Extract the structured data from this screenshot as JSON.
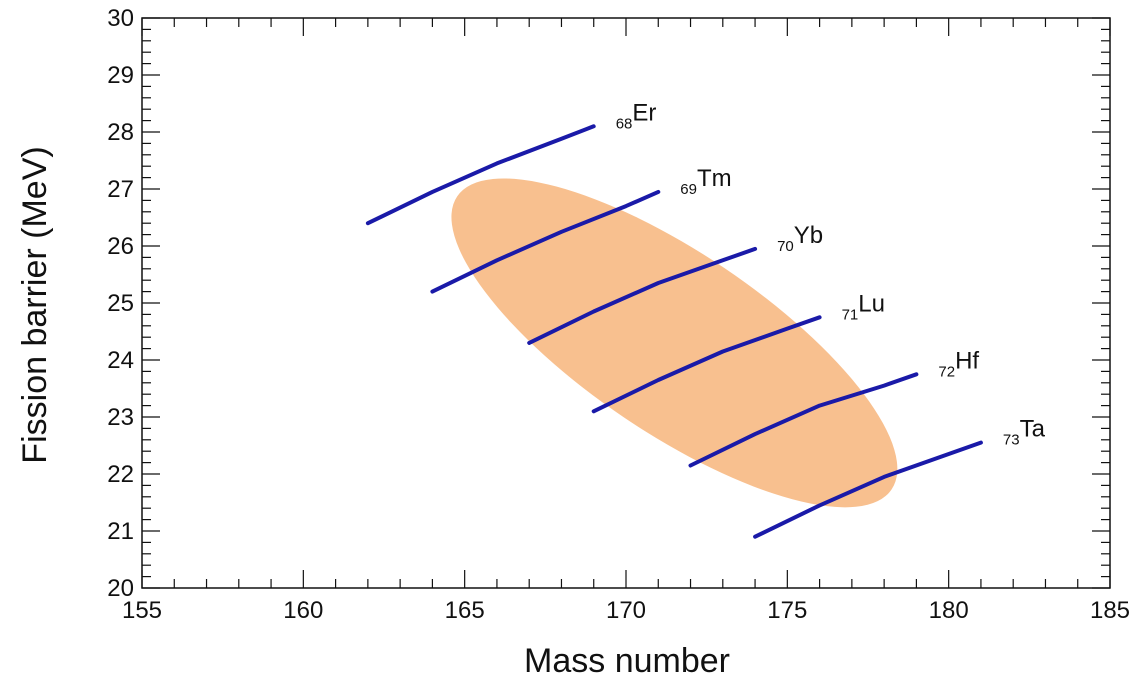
{
  "chart_data": {
    "type": "line",
    "title": "",
    "xlabel": "Mass number",
    "ylabel": "Fission barrier (MeV)",
    "xlim": [
      155,
      185
    ],
    "ylim": [
      20,
      30
    ],
    "x_ticks": [
      155,
      160,
      165,
      170,
      175,
      180,
      185
    ],
    "y_ticks": [
      20,
      21,
      22,
      23,
      24,
      25,
      26,
      27,
      28,
      29,
      30
    ],
    "x_minor_step": 1,
    "y_minor_step": 0.2,
    "grid": false,
    "line_color": "#1a1aa8",
    "series": [
      {
        "name": "Er",
        "z": "68",
        "x": [
          162,
          164,
          166,
          168,
          169
        ],
        "y": [
          26.4,
          26.95,
          27.45,
          27.88,
          28.1
        ]
      },
      {
        "name": "Tm",
        "z": "69",
        "x": [
          164,
          166,
          168,
          170,
          171
        ],
        "y": [
          25.2,
          25.75,
          26.25,
          26.7,
          26.95
        ]
      },
      {
        "name": "Yb",
        "z": "70",
        "x": [
          167,
          169,
          171,
          173,
          174
        ],
        "y": [
          24.3,
          24.85,
          25.35,
          25.75,
          25.95
        ]
      },
      {
        "name": "Lu",
        "z": "71",
        "x": [
          169,
          171,
          173,
          175,
          176
        ],
        "y": [
          23.1,
          23.65,
          24.15,
          24.55,
          24.75
        ]
      },
      {
        "name": "Hf",
        "z": "72",
        "x": [
          172,
          174,
          176,
          178,
          179
        ],
        "y": [
          22.15,
          22.7,
          23.2,
          23.55,
          23.75
        ]
      },
      {
        "name": "Ta",
        "z": "73",
        "x": [
          174,
          176,
          178,
          180,
          181
        ],
        "y": [
          20.9,
          21.45,
          21.95,
          22.35,
          22.55
        ]
      }
    ],
    "annotations": [
      {
        "type": "ellipse",
        "center_x": 171.5,
        "center_y": 24.3,
        "color": "#f5a25a",
        "opacity": 0.68
      }
    ]
  }
}
